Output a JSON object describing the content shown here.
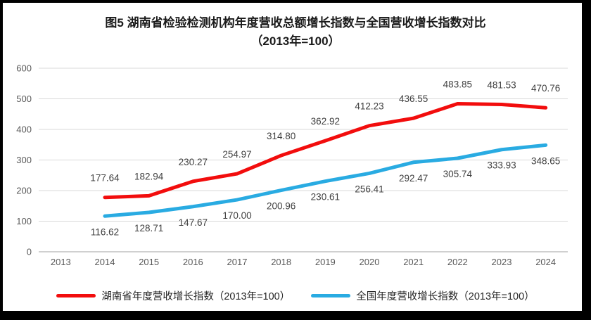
{
  "title": {
    "line1": "图5 湖南省检验检测机构年度营收总额增长指数与全国营收增长指数对比",
    "line2": "（2013年=100）"
  },
  "chart_data": {
    "type": "line",
    "categories": [
      "2013",
      "2014",
      "2015",
      "2016",
      "2017",
      "2018",
      "2019",
      "2020",
      "2021",
      "2022",
      "2023",
      "2024"
    ],
    "series": [
      {
        "name": "湖南省年度营收增长指数（2013年=100）",
        "color": "#F20D0D",
        "label_position": "above",
        "values": [
          null,
          177.64,
          182.94,
          230.27,
          254.97,
          314.8,
          362.92,
          412.23,
          436.55,
          483.85,
          481.53,
          470.76
        ]
      },
      {
        "name": "全国年度营收增长指数（2013年=100）",
        "color": "#29ABE2",
        "label_position": "below",
        "values": [
          null,
          116.62,
          128.71,
          147.67,
          170.0,
          200.96,
          230.61,
          256.41,
          292.47,
          305.74,
          333.93,
          348.65
        ]
      }
    ],
    "ylim": [
      0,
      600
    ],
    "yticks": [
      0,
      100,
      200,
      300,
      400,
      500,
      600
    ],
    "grid": true,
    "legend_position": "bottom",
    "label_decimals": 2
  },
  "colors": {
    "gridline": "#D9D9D9",
    "zero_axis": "#C0C0C0",
    "axis_text": "#595959",
    "data_label_text": "#404040",
    "background": "#FFFFFF",
    "figure_border": "#000000"
  }
}
